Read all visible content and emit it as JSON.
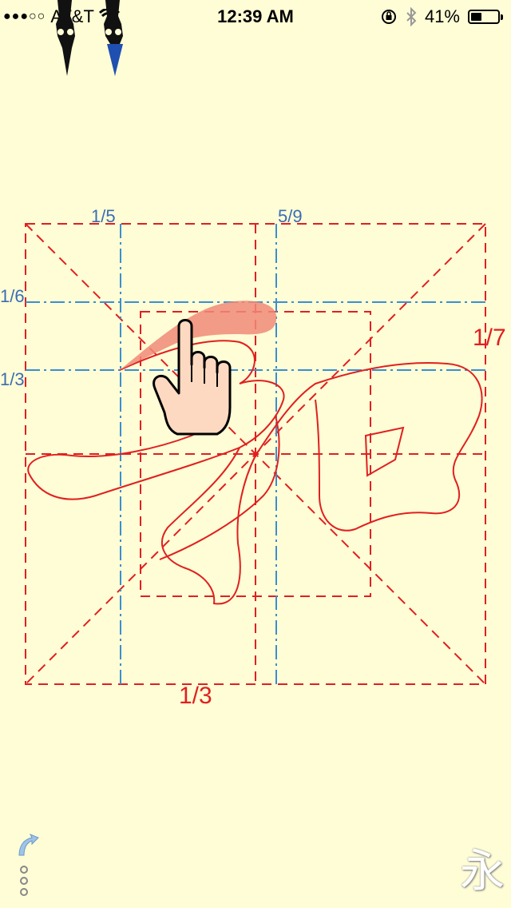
{
  "status_bar": {
    "carrier": "AT&T",
    "time": "12:39 AM",
    "battery_percent": "41%",
    "battery_level": 0.41,
    "icons": [
      "signal-dots-icon",
      "wifi-icon",
      "rotation-lock-icon",
      "bluetooth-icon",
      "battery-icon"
    ]
  },
  "grid_labels": {
    "top_left": "1/5",
    "top_right": "5/9",
    "left_upper": "1/6",
    "left_lower": "1/3",
    "right": "1/7",
    "bottom": "1/3"
  },
  "logo_char": "永",
  "colors": {
    "background": "#FFFDD6",
    "grid_red": "#E02020",
    "guide_blue": "#3A8FD0",
    "stroke_highlight": "#F08A78"
  }
}
